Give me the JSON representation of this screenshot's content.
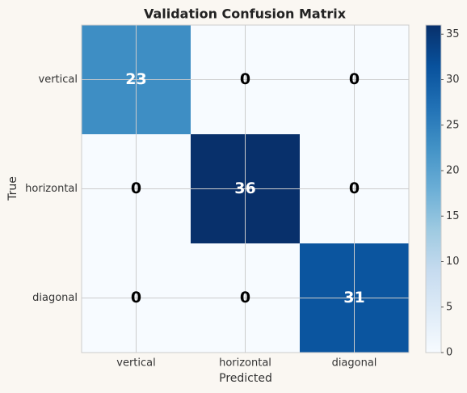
{
  "chart_data": {
    "type": "heatmap",
    "title": "Validation Confusion Matrix",
    "x_label": "Predicted",
    "y_label": "True",
    "x_categories": [
      "vertical",
      "horizontal",
      "diagonal"
    ],
    "y_categories": [
      "vertical",
      "horizontal",
      "diagonal"
    ],
    "values": [
      [
        23,
        0,
        0
      ],
      [
        0,
        36,
        0
      ],
      [
        0,
        0,
        31
      ]
    ],
    "colormap": "Blues",
    "zlim": [
      0,
      36
    ],
    "zticks": [
      0,
      5,
      10,
      15,
      20,
      25,
      30,
      35
    ],
    "grid": true
  }
}
